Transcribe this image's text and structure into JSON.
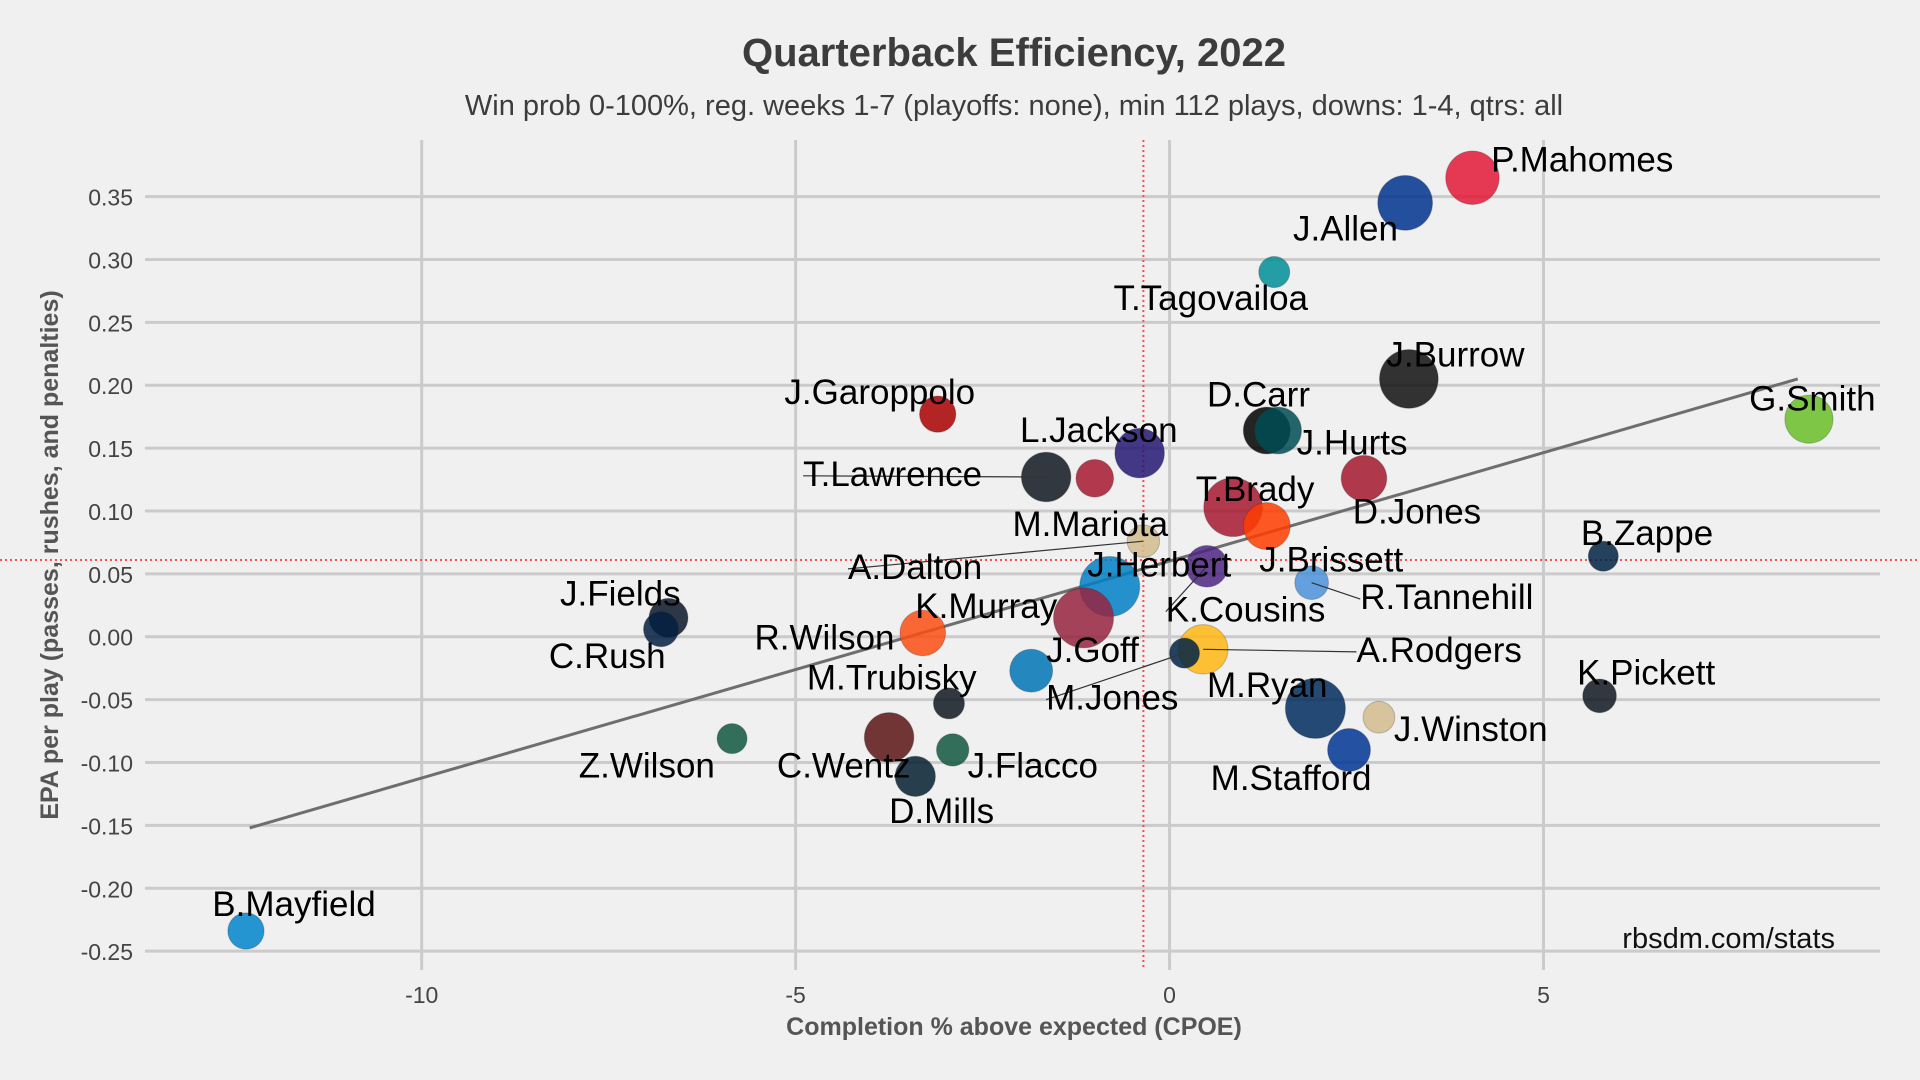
{
  "chart_data": {
    "type": "scatter",
    "title": "Quarterback Efficiency, 2022",
    "subtitle": "Win prob 0-100%, reg. weeks 1-7 (playoffs: none), min 112 plays, downs: 1-4, qtrs: all",
    "xlabel": "Completion % above expected (CPOE)",
    "ylabel": "EPA per play (passes, rushes, and penalties)",
    "credit": "rbsdm.com/stats",
    "xlim": [
      -13.7,
      9.5
    ],
    "ylim": [
      -0.265,
      0.395
    ],
    "x_ticks": [
      {
        "value": -10,
        "label": "-10"
      },
      {
        "value": -5,
        "label": "-5"
      },
      {
        "value": 0,
        "label": "0"
      },
      {
        "value": 5,
        "label": "5"
      }
    ],
    "y_ticks": [
      {
        "value": 0.35,
        "label": "0.35"
      },
      {
        "value": 0.3,
        "label": "0.30"
      },
      {
        "value": 0.25,
        "label": "0.25"
      },
      {
        "value": 0.2,
        "label": "0.20"
      },
      {
        "value": 0.15,
        "label": "0.15"
      },
      {
        "value": 0.1,
        "label": "0.10"
      },
      {
        "value": 0.05,
        "label": "0.05"
      },
      {
        "value": 0.0,
        "label": "0.00"
      },
      {
        "value": -0.05,
        "label": "-0.05"
      },
      {
        "value": -0.1,
        "label": "-0.10"
      },
      {
        "value": -0.15,
        "label": "-0.15"
      },
      {
        "value": -0.2,
        "label": "-0.20"
      },
      {
        "value": -0.25,
        "label": "-0.25"
      }
    ],
    "mean_x": -0.35,
    "mean_y": 0.061,
    "trend_line": {
      "x": [
        -12.3,
        8.4
      ],
      "y": [
        -0.152,
        0.205
      ]
    },
    "points": [
      {
        "name": "P.Mahomes",
        "x": 4.05,
        "y": 0.365,
        "plays": 290,
        "color": "#e31837",
        "label_x": 4.3,
        "label_y": 0.37
      },
      {
        "name": "J.Allen",
        "x": 3.15,
        "y": 0.345,
        "plays": 300,
        "color": "#00338d",
        "label_x": 1.65,
        "label_y": 0.315
      },
      {
        "name": "T.Tagovailoa",
        "x": 1.4,
        "y": 0.29,
        "plays": 120,
        "color": "#008e97",
        "label_x": -0.75,
        "label_y": 0.26
      },
      {
        "name": "J.Burrow",
        "x": 3.2,
        "y": 0.205,
        "plays": 330,
        "color": "#111111",
        "label_x": 2.9,
        "label_y": 0.215
      },
      {
        "name": "G.Smith",
        "x": 8.55,
        "y": 0.173,
        "plays": 250,
        "color": "#69be28",
        "label_x": 7.75,
        "label_y": 0.18
      },
      {
        "name": "D.Carr",
        "x": 1.3,
        "y": 0.164,
        "plays": 240,
        "color": "#000000",
        "label_x": 0.5,
        "label_y": 0.183
      },
      {
        "name": "J.Hurts",
        "x": 1.45,
        "y": 0.164,
        "plays": 240,
        "color": "#004c54",
        "label_x": 1.7,
        "label_y": 0.145
      },
      {
        "name": "J.Garoppolo",
        "x": -3.1,
        "y": 0.177,
        "plays": 160,
        "color": "#aa0000",
        "label_x": -5.15,
        "label_y": 0.185
      },
      {
        "name": "L.Jackson",
        "x": -0.4,
        "y": 0.146,
        "plays": 260,
        "color": "#241773",
        "label_x": -2.0,
        "label_y": 0.155
      },
      {
        "name": "T.Lawrence",
        "x": -1.65,
        "y": 0.127,
        "plays": 260,
        "color": "#101820",
        "label_x": -4.9,
        "label_y": 0.12,
        "leader": true
      },
      {
        "name": "M.Mariota",
        "x": -1.0,
        "y": 0.126,
        "plays": 170,
        "color": "#a71930",
        "label_x": -2.1,
        "label_y": 0.08
      },
      {
        "name": "T.Brady",
        "x": 0.85,
        "y": 0.103,
        "plays": 330,
        "color": "#a71930",
        "label_x": 0.35,
        "label_y": 0.108
      },
      {
        "name": "D.Jones",
        "x": 2.6,
        "y": 0.126,
        "plays": 230,
        "color": "#a5172e",
        "label_x": 2.45,
        "label_y": 0.09
      },
      {
        "name": "J.Brissett",
        "x": 1.3,
        "y": 0.088,
        "plays": 240,
        "color": "#ff3c00",
        "label_x": 1.2,
        "label_y": 0.052
      },
      {
        "name": "A.Dalton",
        "x": -0.35,
        "y": 0.076,
        "plays": 130,
        "color": "#d3bc8d",
        "label_x": -4.3,
        "label_y": 0.046,
        "leader": true
      },
      {
        "name": "J.Herbert",
        "x": -0.8,
        "y": 0.04,
        "plays": 340,
        "color": "#0080c6",
        "label_x": -1.1,
        "label_y": 0.048
      },
      {
        "name": "K.Cousins",
        "x": 0.5,
        "y": 0.056,
        "plays": 200,
        "color": "#4f2683",
        "label_x": -0.05,
        "label_y": 0.012,
        "leader": true
      },
      {
        "name": "R.Tannehill",
        "x": 1.9,
        "y": 0.043,
        "plays": 140,
        "color": "#4b92db",
        "label_x": 2.55,
        "label_y": 0.022,
        "leader": true
      },
      {
        "name": "B.Zappe",
        "x": 5.8,
        "y": 0.064,
        "plays": 112,
        "color": "#002244",
        "label_x": 5.5,
        "label_y": 0.073
      },
      {
        "name": "K.Murray",
        "x": -1.15,
        "y": 0.015,
        "plays": 340,
        "color": "#97233f",
        "label_x": -3.4,
        "label_y": 0.015
      },
      {
        "name": "J.Fields",
        "x": -6.7,
        "y": 0.015,
        "plays": 180,
        "color": "#0b162a",
        "label_x": -8.15,
        "label_y": 0.025
      },
      {
        "name": "C.Rush",
        "x": -6.8,
        "y": 0.006,
        "plays": 150,
        "color": "#041e42",
        "label_x": -8.3,
        "label_y": -0.025
      },
      {
        "name": "R.Wilson",
        "x": -3.3,
        "y": 0.003,
        "plays": 230,
        "color": "#fb4f14",
        "label_x": -5.55,
        "label_y": -0.01
      },
      {
        "name": "A.Rodgers",
        "x": 0.45,
        "y": -0.01,
        "plays": 260,
        "color": "#ffb612",
        "label_x": 2.5,
        "label_y": -0.02,
        "leader": true
      },
      {
        "name": "J.Goff",
        "x": -1.85,
        "y": -0.027,
        "plays": 210,
        "color": "#0076b6",
        "label_x": -1.65,
        "label_y": -0.02
      },
      {
        "name": "M.Jones",
        "x": 0.2,
        "y": -0.013,
        "plays": 112,
        "color": "#002244",
        "label_x": -1.65,
        "label_y": -0.058,
        "leader": true
      },
      {
        "name": "M.Trubisky",
        "x": -2.95,
        "y": -0.053,
        "plays": 120,
        "color": "#101820",
        "label_x": -4.85,
        "label_y": -0.042
      },
      {
        "name": "M.Ryan",
        "x": 1.95,
        "y": -0.057,
        "plays": 340,
        "color": "#002c5f",
        "label_x": 0.5,
        "label_y": -0.048
      },
      {
        "name": "K.Pickett",
        "x": 5.75,
        "y": -0.047,
        "plays": 140,
        "color": "#101820",
        "label_x": 5.45,
        "label_y": -0.038
      },
      {
        "name": "J.Winston",
        "x": 2.8,
        "y": -0.064,
        "plays": 125,
        "color": "#d3bc8d",
        "label_x": 3.0,
        "label_y": -0.083
      },
      {
        "name": "Z.Wilson",
        "x": -5.85,
        "y": -0.081,
        "plays": 112,
        "color": "#125740",
        "label_x": -7.9,
        "label_y": -0.112
      },
      {
        "name": "C.Wentz",
        "x": -3.75,
        "y": -0.08,
        "plays": 260,
        "color": "#5a1414",
        "label_x": -5.25,
        "label_y": -0.112
      },
      {
        "name": "J.Flacco",
        "x": -2.9,
        "y": -0.09,
        "plays": 130,
        "color": "#125740",
        "label_x": -2.7,
        "label_y": -0.112
      },
      {
        "name": "M.Stafford",
        "x": 2.4,
        "y": -0.09,
        "plays": 210,
        "color": "#003594",
        "label_x": 0.55,
        "label_y": -0.122
      },
      {
        "name": "D.Mills",
        "x": -3.4,
        "y": -0.111,
        "plays": 190,
        "color": "#03202f",
        "label_x": -3.75,
        "label_y": -0.148
      },
      {
        "name": "B.Mayfield",
        "x": -12.35,
        "y": -0.234,
        "plays": 160,
        "color": "#0085ca",
        "label_x": -12.8,
        "label_y": -0.222
      }
    ]
  }
}
